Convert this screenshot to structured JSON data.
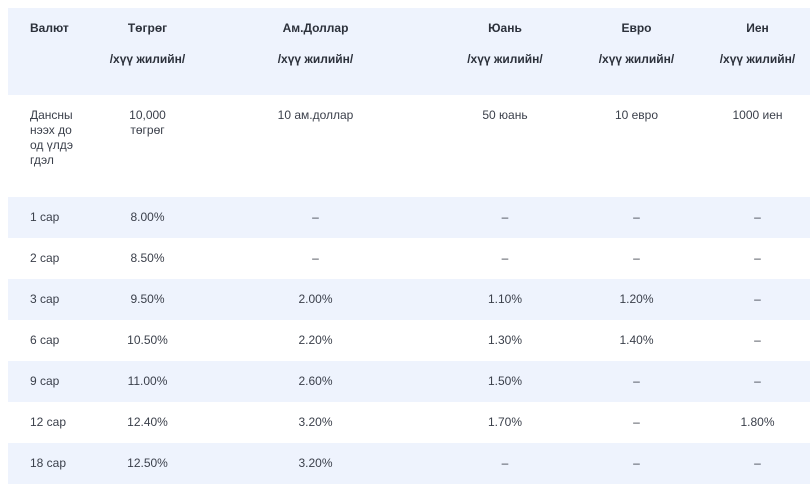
{
  "table": {
    "headers": [
      {
        "title": "Валют",
        "sub": ""
      },
      {
        "title": "Төгрөг",
        "sub": "/хүү жилийн/"
      },
      {
        "title": "Ам.Доллар",
        "sub": "/хүү жилийн/"
      },
      {
        "title": "Юань",
        "sub": "/хүү жилийн/"
      },
      {
        "title": "Евро",
        "sub": "/хүү жилийн/"
      },
      {
        "title": "Иен",
        "sub": "/хүү жилийн/"
      }
    ],
    "min_balance": {
      "label": "Дансны нээх доод үлдэгдэл",
      "values": [
        "10,000 төгрөг",
        "10 ам.доллар",
        "50 юань",
        "10 евро",
        "1000 иен"
      ]
    },
    "rows": [
      {
        "term": "1 сар",
        "values": [
          "8.00%",
          "–",
          "–",
          "–",
          "–"
        ]
      },
      {
        "term": "2 сар",
        "values": [
          "8.50%",
          "–",
          "–",
          "–",
          "–"
        ]
      },
      {
        "term": "3 сар",
        "values": [
          "9.50%",
          "2.00%",
          "1.10%",
          "1.20%",
          "–"
        ]
      },
      {
        "term": "6 сар",
        "values": [
          "10.50%",
          "2.20%",
          "1.30%",
          "1.40%",
          "–"
        ]
      },
      {
        "term": "9 сар",
        "values": [
          "11.00%",
          "2.60%",
          "1.50%",
          "–",
          "–"
        ]
      },
      {
        "term": "12 сар",
        "values": [
          "12.40%",
          "3.20%",
          "1.70%",
          "–",
          "1.80%"
        ]
      },
      {
        "term": "18 сар",
        "values": [
          "12.50%",
          "3.20%",
          "–",
          "–",
          "–"
        ]
      }
    ]
  }
}
